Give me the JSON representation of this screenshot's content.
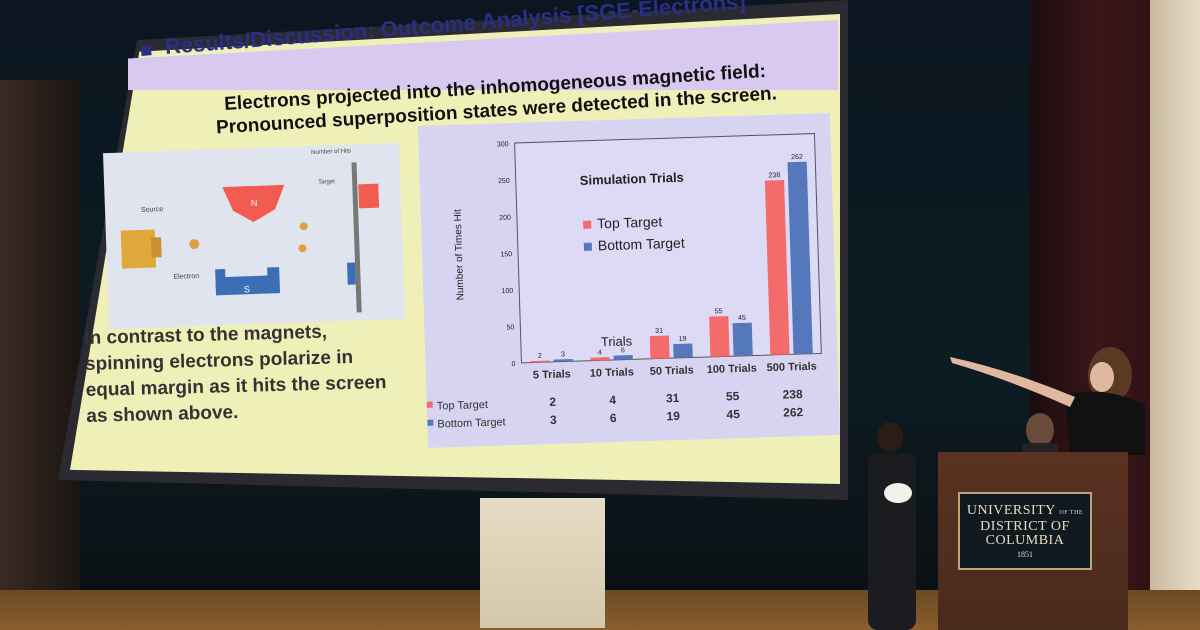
{
  "slide": {
    "title": "Results/Discussion: Outcome Analysis [SGE-Electrons]",
    "subtitle_line1": "Electrons projected into the inhomogeneous magnetic field:",
    "subtitle_line2": "Pronounced superposition states were detected in the screen.",
    "contrast_text": "In contrast to the magnets, spinning electrons polarize in equal margin as it hits the screen as shown above.",
    "diagram": {
      "number_of_hits": "Number of Hits",
      "target": "Target",
      "source": "Source",
      "electron": "Electron",
      "north": "N",
      "south": "S"
    }
  },
  "chart_data": {
    "type": "bar",
    "title": "Simulation Trials",
    "ylabel": "Number of Times Hit",
    "xlabel": "Trials",
    "ylim": [
      0,
      300
    ],
    "yticks": [
      0,
      50,
      100,
      150,
      200,
      250,
      300
    ],
    "categories": [
      "5 Trials",
      "10 Trials",
      "50 Trials",
      "100 Trials",
      "500 Trials"
    ],
    "series": [
      {
        "name": "Top Target",
        "values": [
          2,
          4,
          31,
          55,
          238
        ],
        "color": "#f36b6b"
      },
      {
        "name": "Bottom Target",
        "values": [
          3,
          6,
          19,
          45,
          262
        ],
        "color": "#5577bb"
      }
    ],
    "legend_position": "upper-left inside",
    "table": true
  },
  "podium": {
    "line1": "UNIVERSITY",
    "line1_small": "OF THE",
    "line2": "DISTRICT OF",
    "line3": "COLUMBIA",
    "year": "1851"
  },
  "colors": {
    "slide_bg": "#eef0b8",
    "title_bar": "#d9c9f1",
    "title_text": "#2a2f86",
    "chart_bg": "#d7d4f2"
  }
}
